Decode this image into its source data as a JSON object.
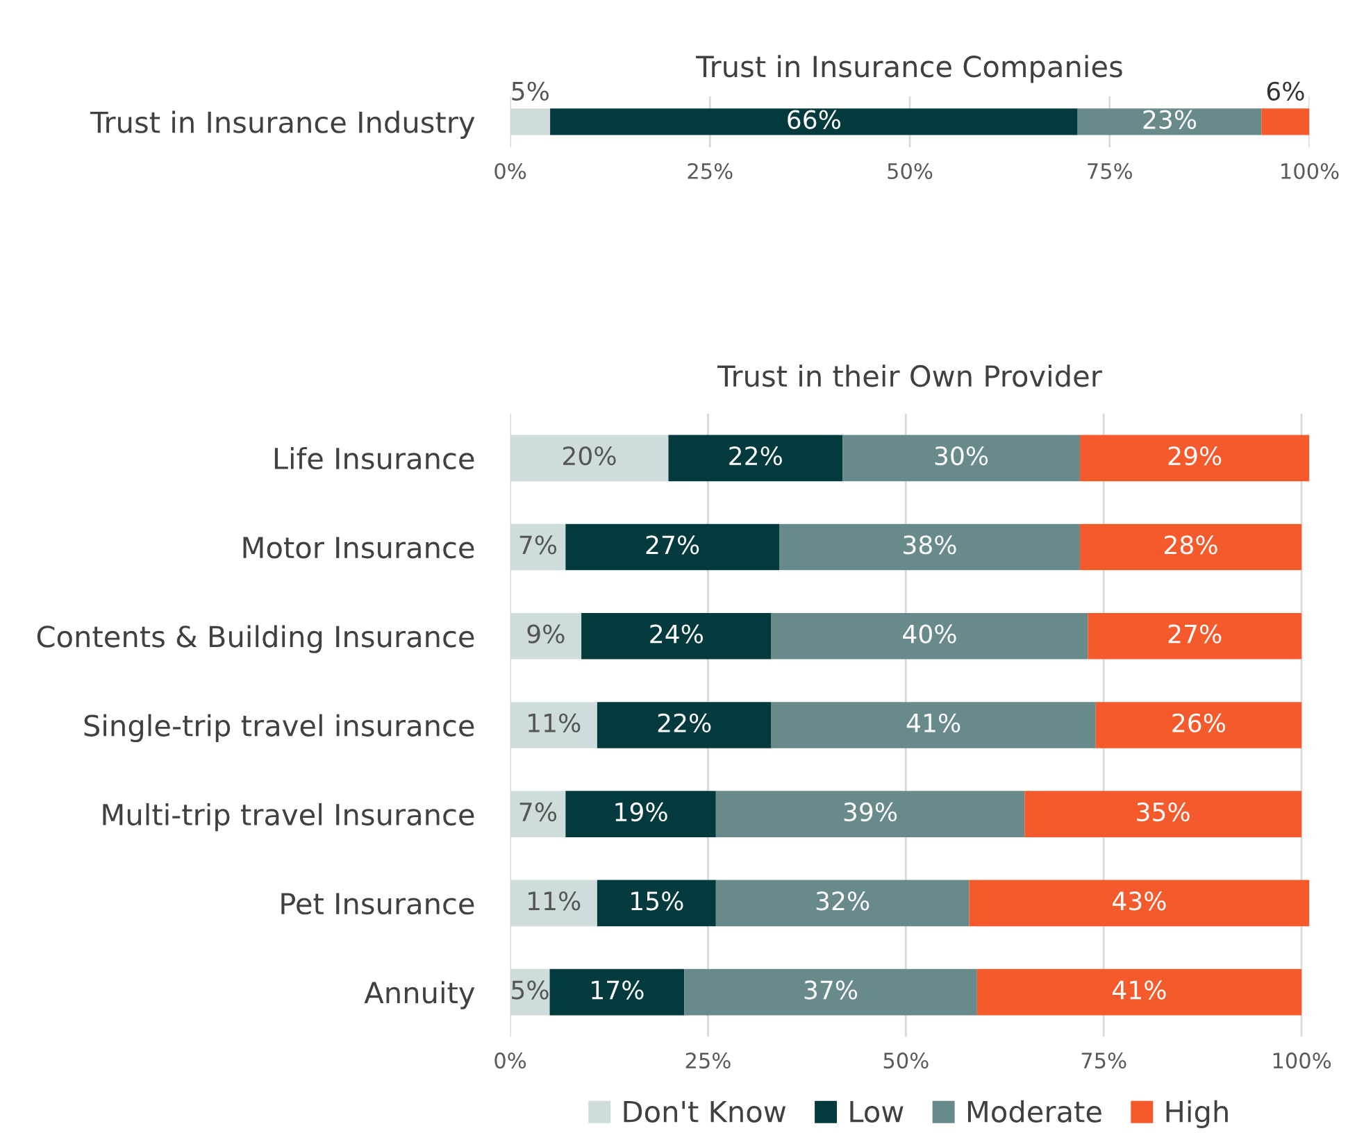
{
  "chart_data": [
    {
      "type": "bar",
      "orientation": "horizontal",
      "stacked": true,
      "title": "Trust in Insurance Companies",
      "categories": [
        "Trust in Insurance Industry"
      ],
      "series": [
        {
          "color": "#cfdcdc",
          "values": [
            5
          ],
          "value_labels": [
            "5%"
          ]
        },
        {
          "color": "#033a3e",
          "values": [
            66
          ],
          "value_labels": [
            "66%"
          ]
        },
        {
          "color": "#688a8a",
          "values": [
            23
          ],
          "value_labels": [
            "23%"
          ]
        },
        {
          "color": "#f55a2c",
          "values": [
            6
          ],
          "value_labels": [
            "6%"
          ]
        }
      ],
      "xlim": [
        0,
        100
      ],
      "xticks": [
        {
          "value": 0,
          "label": "0%"
        },
        {
          "value": 25,
          "label": "25%"
        },
        {
          "value": 50,
          "label": "50%"
        },
        {
          "value": 75,
          "label": "75%"
        },
        {
          "value": 100,
          "label": "100%"
        }
      ],
      "grid": "x",
      "legend": false
    },
    {
      "type": "bar",
      "orientation": "horizontal",
      "stacked": true,
      "title": "Trust in their Own Provider",
      "categories": [
        "Life Insurance",
        "Motor Insurance",
        "Contents & Building Insurance",
        "Single-trip travel insurance",
        "Multi-trip travel Insurance",
        "Pet Insurance",
        "Annuity"
      ],
      "series": [
        {
          "name": "Don't Know",
          "color": "#cfdcdc",
          "values": [
            20,
            7,
            9,
            11,
            7,
            11,
            5
          ],
          "value_labels": [
            "20%",
            "7%",
            "9%",
            "11%",
            "7%",
            "11%",
            "5%"
          ]
        },
        {
          "name": "Low",
          "color": "#033a3e",
          "values": [
            22,
            27,
            24,
            22,
            19,
            15,
            17
          ],
          "value_labels": [
            "22%",
            "27%",
            "24%",
            "22%",
            "19%",
            "15%",
            "17%"
          ]
        },
        {
          "name": "Moderate",
          "color": "#688a8a",
          "values": [
            30,
            38,
            40,
            41,
            39,
            32,
            37
          ],
          "value_labels": [
            "30%",
            "38%",
            "40%",
            "41%",
            "39%",
            "32%",
            "37%"
          ]
        },
        {
          "name": "High",
          "color": "#f55a2c",
          "values": [
            29,
            28,
            27,
            26,
            35,
            43,
            41
          ],
          "value_labels": [
            "29%",
            "28%",
            "27%",
            "26%",
            "35%",
            "43%",
            "41%"
          ]
        }
      ],
      "xlim": [
        0,
        101
      ],
      "xticks": [
        {
          "value": 0,
          "label": "0%"
        },
        {
          "value": 25,
          "label": "25%"
        },
        {
          "value": 50,
          "label": "50%"
        },
        {
          "value": 75,
          "label": "75%"
        },
        {
          "value": 100,
          "label": "100%"
        }
      ],
      "grid": "x",
      "legend": "bottom"
    }
  ]
}
